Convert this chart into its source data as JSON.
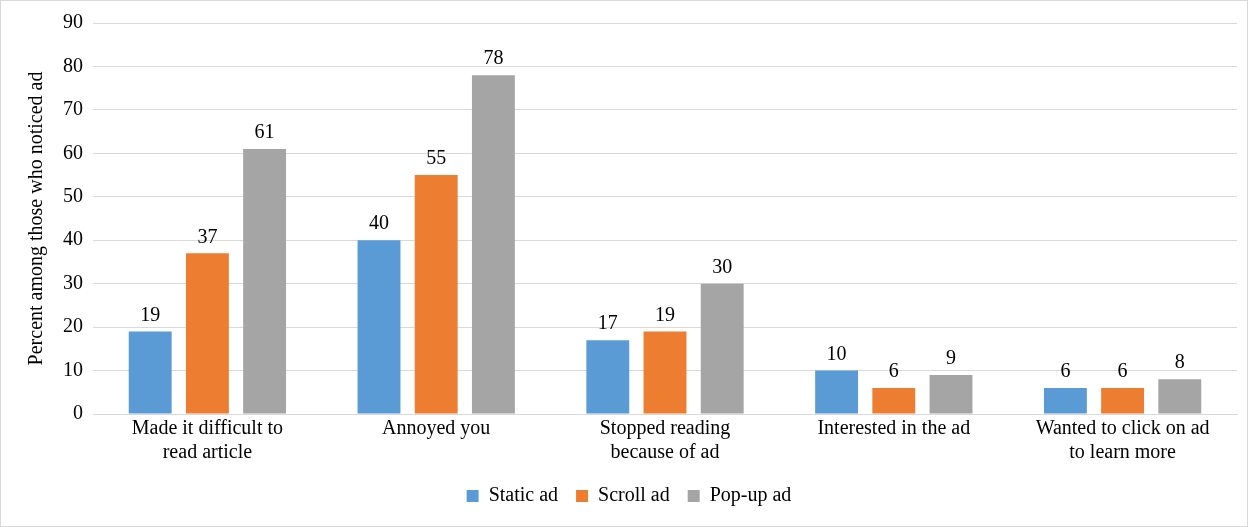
{
  "chart_data": {
    "type": "bar",
    "ylabel": "Percent among those who noticed ad",
    "categories": [
      "Made it difficult to read article",
      "Annoyed you",
      "Stopped reading because of ad",
      "Interested in the ad",
      "Wanted to click on ad to learn more"
    ],
    "series": [
      {
        "name": "Static ad",
        "color": "#5b9bd5",
        "values": [
          19,
          40,
          17,
          10,
          6
        ]
      },
      {
        "name": "Scroll ad",
        "color": "#ed7d31",
        "values": [
          37,
          55,
          19,
          6,
          6
        ]
      },
      {
        "name": "Pop-up ad",
        "color": "#a5a5a5",
        "values": [
          61,
          78,
          30,
          9,
          8
        ]
      }
    ],
    "ylim": [
      0,
      90
    ],
    "yticks": [
      0,
      10,
      20,
      30,
      40,
      50,
      60,
      70,
      80,
      90
    ],
    "grid": "y",
    "legend": "bottom",
    "data_labels": true
  }
}
